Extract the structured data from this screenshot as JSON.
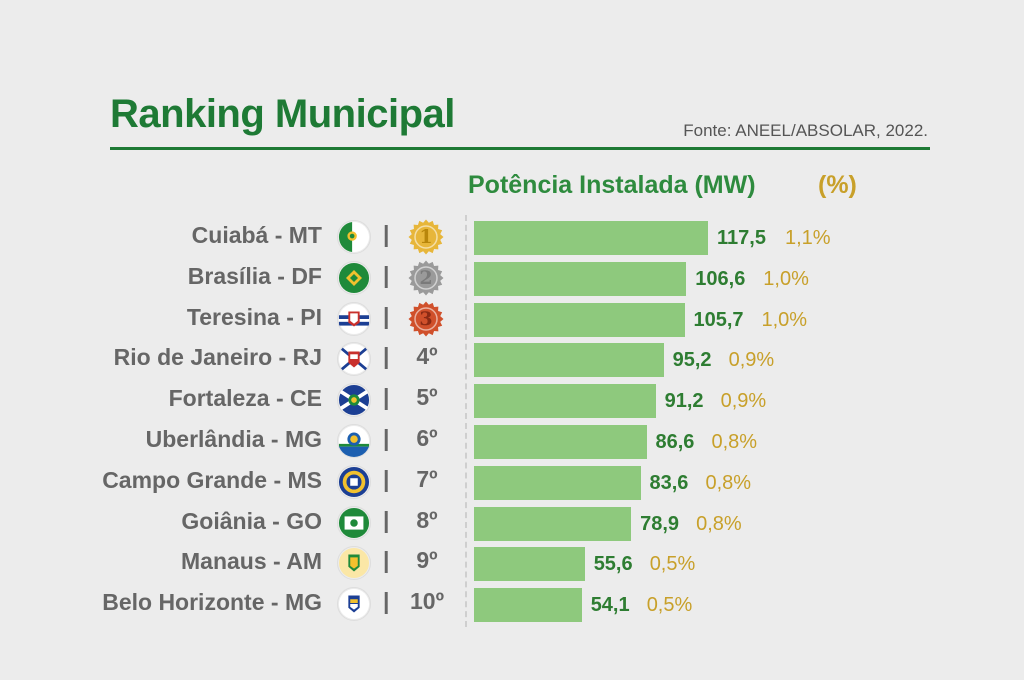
{
  "header": {
    "title": "Ranking Municipal",
    "source": "Fonte: ANEEL/ABSOLAR, 2022.",
    "metric_label": "Potência Instalada (MW)",
    "percent_label": "(%)"
  },
  "colors": {
    "title": "#1e7a35",
    "bar": "#8ec97d",
    "value_text": "#2e7d32",
    "percent_text": "#c8a02a",
    "gold": "#e7b63a",
    "silver": "#9a9a9a",
    "bronze": "#d0502b"
  },
  "chart_data": {
    "type": "bar",
    "orientation": "horizontal",
    "categories": [
      "Cuiabá - MT",
      "Brasília - DF",
      "Teresina - PI",
      "Rio de Janeiro - RJ",
      "Fortaleza - CE",
      "Uberlândia - MG",
      "Campo Grande - MS",
      "Goiânia - GO",
      "Manaus - AM",
      "Belo Horizonte - MG"
    ],
    "ranks": [
      "1",
      "2",
      "3",
      "4º",
      "5º",
      "6º",
      "7º",
      "8º",
      "9º",
      "10º"
    ],
    "value_labels": [
      "117,5",
      "106,6",
      "105,7",
      "95,2",
      "91,2",
      "86,6",
      "83,6",
      "78,9",
      "55,6",
      "54,1"
    ],
    "percent_labels": [
      "1,1%",
      "1,0%",
      "1,0%",
      "0,9%",
      "0,9%",
      "0,8%",
      "0,8%",
      "0,8%",
      "0,5%",
      "0,5%"
    ],
    "series": [
      {
        "values": [
          117.5,
          106.6,
          105.7,
          95.2,
          91.2,
          86.6,
          83.6,
          78.9,
          55.6,
          54.1
        ]
      }
    ],
    "percent_values": [
      1.1,
      1.0,
      1.0,
      0.9,
      0.9,
      0.8,
      0.8,
      0.8,
      0.5,
      0.5
    ],
    "xlim": [
      0,
      117.5
    ],
    "grid": false,
    "legend": "none",
    "flag_icons": [
      "cuiaba-flag-icon",
      "brasilia-flag-icon",
      "teresina-flag-icon",
      "rio-de-janeiro-flag-icon",
      "fortaleza-flag-icon",
      "uberlandia-flag-icon",
      "campo-grande-flag-icon",
      "goiania-flag-icon",
      "manaus-flag-icon",
      "belo-horizonte-flag-icon"
    ]
  }
}
